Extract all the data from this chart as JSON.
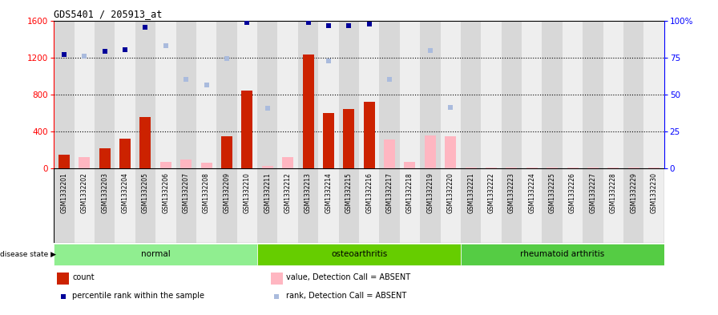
{
  "title": "GDS5401 / 205913_at",
  "samples": [
    "GSM1332201",
    "GSM1332202",
    "GSM1332203",
    "GSM1332204",
    "GSM1332205",
    "GSM1332206",
    "GSM1332207",
    "GSM1332208",
    "GSM1332209",
    "GSM1332210",
    "GSM1332211",
    "GSM1332212",
    "GSM1332213",
    "GSM1332214",
    "GSM1332215",
    "GSM1332216",
    "GSM1332217",
    "GSM1332218",
    "GSM1332219",
    "GSM1332220",
    "GSM1332221",
    "GSM1332222",
    "GSM1332223",
    "GSM1332224",
    "GSM1332225",
    "GSM1332226",
    "GSM1332227",
    "GSM1332228",
    "GSM1332229",
    "GSM1332230"
  ],
  "count_present": [
    150,
    null,
    220,
    320,
    560,
    null,
    null,
    null,
    350,
    840,
    null,
    null,
    1230,
    600,
    640,
    720,
    null,
    null,
    null,
    null,
    null,
    null,
    null,
    null,
    null,
    null,
    null,
    null,
    null,
    null
  ],
  "count_absent": [
    null,
    120,
    null,
    null,
    null,
    70,
    100,
    60,
    null,
    null,
    25,
    120,
    null,
    null,
    null,
    null,
    310,
    70,
    360,
    350,
    8,
    8,
    8,
    8,
    8,
    8,
    8,
    8,
    8,
    8
  ],
  "rank_present": [
    1230,
    null,
    1270,
    1285,
    1530,
    null,
    null,
    null,
    null,
    1575,
    null,
    null,
    1575,
    1545,
    1545,
    1565,
    null,
    null,
    null,
    null,
    null,
    null,
    null,
    null,
    null,
    null,
    null,
    null,
    null,
    null
  ],
  "rank_absent": [
    null,
    1215,
    null,
    null,
    null,
    1330,
    960,
    900,
    1185,
    null,
    650,
    null,
    null,
    1165,
    null,
    null,
    960,
    null,
    1275,
    660,
    null,
    null,
    null,
    null,
    null,
    null,
    null,
    null,
    null,
    null
  ],
  "disease_groups": [
    {
      "label": "normal",
      "start": 0,
      "end": 10,
      "color": "#90EE90"
    },
    {
      "label": "osteoarthritis",
      "start": 10,
      "end": 20,
      "color": "#66CD00"
    },
    {
      "label": "rheumatoid arthritis",
      "start": 20,
      "end": 30,
      "color": "#55CC44"
    }
  ],
  "ylim_left": [
    0,
    1600
  ],
  "ylim_right": [
    0,
    100
  ],
  "yticks_left": [
    0,
    400,
    800,
    1200,
    1600
  ],
  "yticks_right": [
    0,
    25,
    50,
    75,
    100
  ],
  "bar_color_present": "#CC2200",
  "bar_color_absent": "#FFB6C1",
  "dot_color_present": "#000099",
  "dot_color_absent": "#AABBDD",
  "plot_bg": "#FFFFFF",
  "col_even": "#D8D8D8",
  "col_odd": "#EEEEEE"
}
